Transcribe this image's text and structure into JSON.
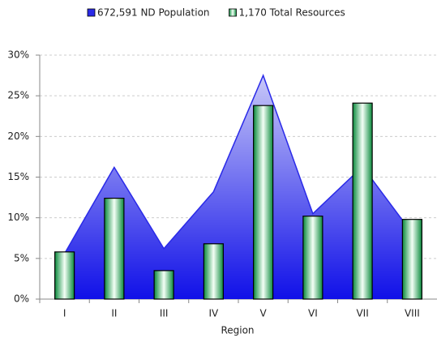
{
  "chart_data": {
    "type": "combo",
    "x_label": "Region",
    "categories": [
      "I",
      "II",
      "III",
      "IV",
      "V",
      "VI",
      "VII",
      "VIII"
    ],
    "series": [
      {
        "name": "672,591 ND Population",
        "type": "area",
        "color": "#2a2ae8",
        "values": [
          5.6,
          16.2,
          6.2,
          13.2,
          27.5,
          10.5,
          16.3,
          8.1
        ]
      },
      {
        "name": "1,170 Total Resources",
        "type": "bar",
        "color": "#1a9e50",
        "values": [
          5.8,
          12.4,
          3.5,
          6.8,
          23.8,
          10.2,
          24.1,
          9.8
        ]
      }
    ],
    "ylim": [
      0,
      30
    ],
    "yticks": [
      {
        "value": 0,
        "label": "0%"
      },
      {
        "value": 5,
        "label": "5%"
      },
      {
        "value": 10,
        "label": "10%"
      },
      {
        "value": 15,
        "label": "15%"
      },
      {
        "value": 20,
        "label": "20%"
      },
      {
        "value": 25,
        "label": "25%"
      },
      {
        "value": 30,
        "label": "30%"
      }
    ],
    "grid": true,
    "legend": "top"
  }
}
